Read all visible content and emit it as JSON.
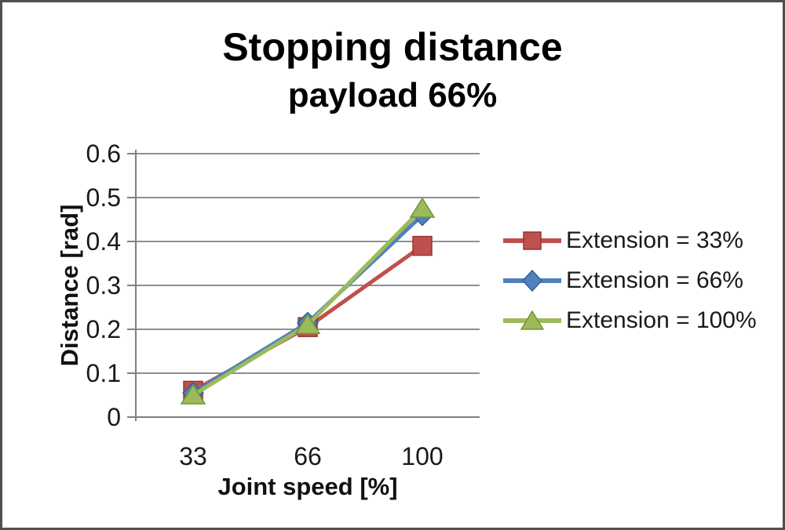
{
  "chart_data": {
    "type": "line",
    "title": "Stopping distance",
    "subtitle": "payload 66%",
    "categories": [
      "33",
      "66",
      "100"
    ],
    "xlabel": "Joint speed [%]",
    "ylabel": "Distance [rad]",
    "ylim": [
      0,
      0.6
    ],
    "yticks": [
      "0",
      "0.1",
      "0.2",
      "0.3",
      "0.4",
      "0.5",
      "0.6"
    ],
    "grid": true,
    "legend_position": "right",
    "series": [
      {
        "name": "Extension = 33%",
        "marker": "square",
        "color": "#C0504D",
        "marker_border": "#943634",
        "values": [
          0.06,
          0.205,
          0.39
        ]
      },
      {
        "name": "Extension = 66%",
        "marker": "diamond",
        "color": "#4F81BD",
        "marker_border": "#376092",
        "values": [
          0.055,
          0.215,
          0.46
        ]
      },
      {
        "name": "Extension = 100%",
        "marker": "triangle",
        "color": "#9BBB59",
        "marker_border": "#77933C",
        "values": [
          0.05,
          0.21,
          0.475
        ]
      }
    ],
    "colors": {
      "gridline": "#8f8f8f",
      "axis": "#808080",
      "tick_text": "#1a1a1a",
      "background": "#ffffff",
      "frame_border": "#4f4f4f"
    }
  }
}
